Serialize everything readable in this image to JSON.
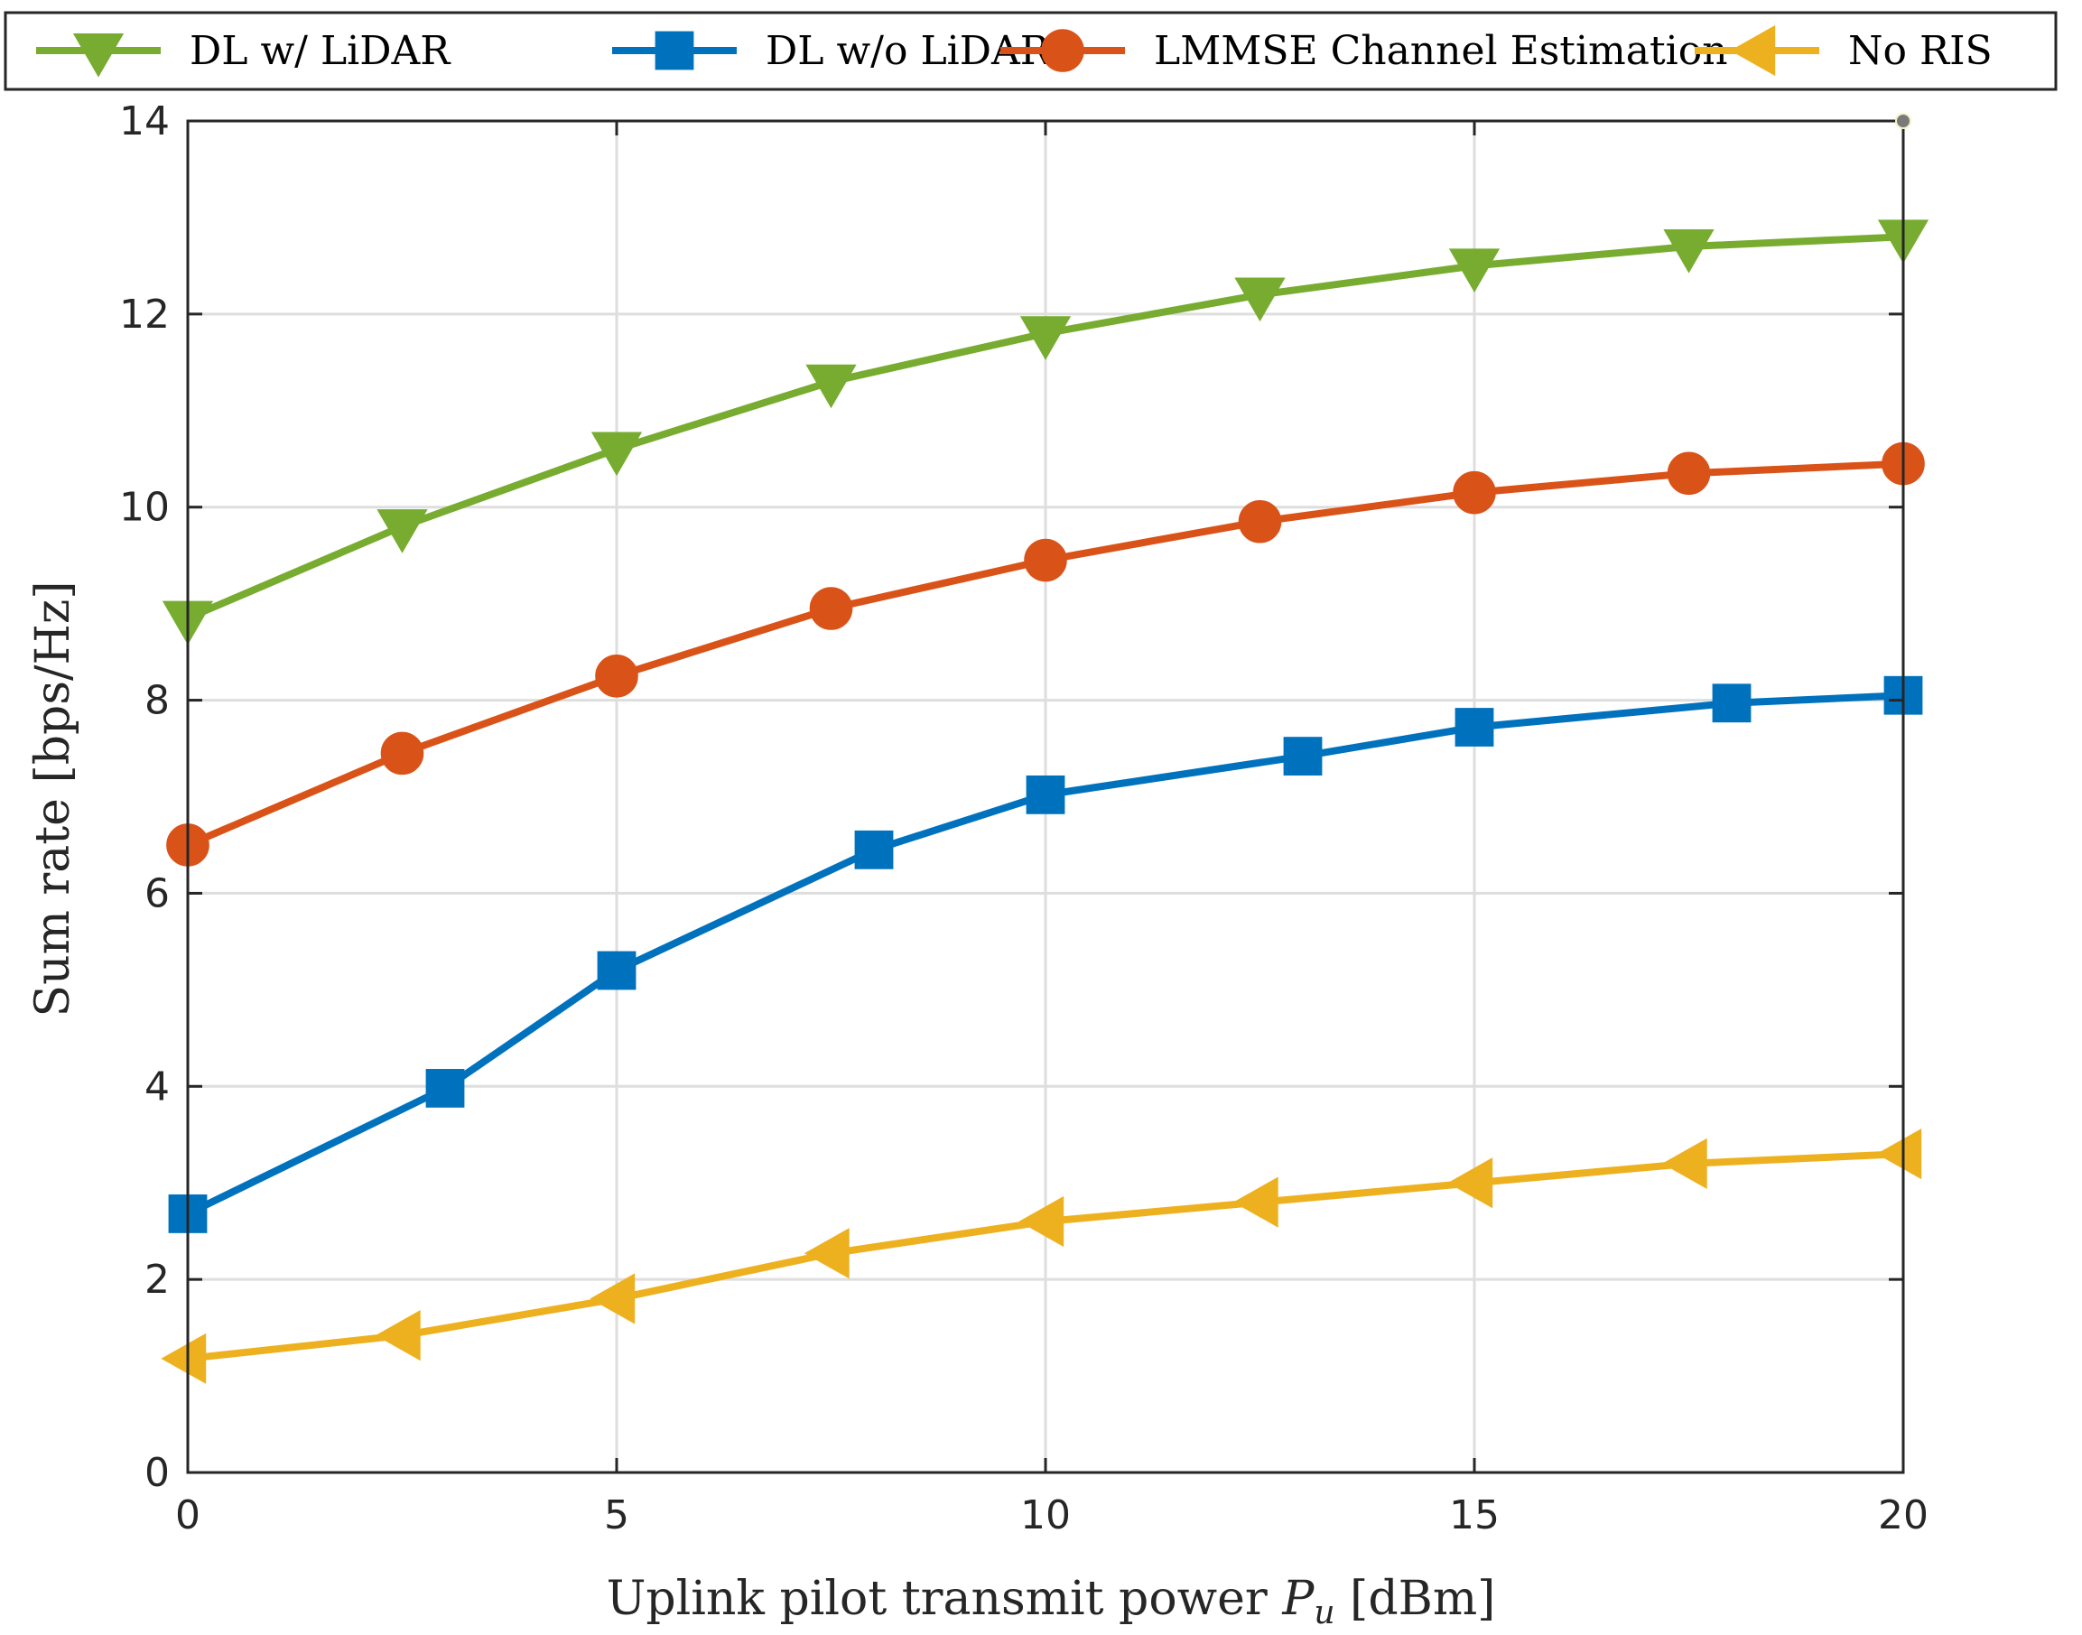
{
  "chart_data": {
    "type": "line",
    "xlabel_prefix": "Uplink pilot transmit power ",
    "xlabel_symbol": "P",
    "xlabel_subscript": "u",
    "xlabel_suffix": " [dBm]",
    "ylabel": "Sum rate [bps/Hz]",
    "xlim": [
      0,
      20
    ],
    "ylim": [
      0,
      14
    ],
    "xticks": [
      0,
      5,
      10,
      15,
      20
    ],
    "yticks": [
      0,
      2,
      4,
      6,
      8,
      10,
      12,
      14
    ],
    "grid": true,
    "legend_position": "top",
    "series": [
      {
        "name": "DL w/ LiDAR",
        "color": "#77ac30",
        "marker": "triangle-down",
        "x": [
          0,
          2.5,
          5,
          7.5,
          10,
          12.5,
          15,
          17.5,
          20
        ],
        "y": [
          8.85,
          9.8,
          10.6,
          11.3,
          11.8,
          12.2,
          12.5,
          12.7,
          12.8
        ]
      },
      {
        "name": "DL w/o LiDAR",
        "color": "#0072bd",
        "marker": "square",
        "x": [
          0,
          3,
          5,
          8,
          10,
          13,
          15,
          18,
          20
        ],
        "y": [
          2.68,
          3.98,
          5.2,
          6.45,
          7.02,
          7.42,
          7.72,
          7.97,
          8.05
        ]
      },
      {
        "name": "LMMSE Channel Estimation",
        "color": "#d95319",
        "marker": "circle",
        "x": [
          0,
          2.5,
          5,
          7.5,
          10,
          12.5,
          15,
          17.5,
          20
        ],
        "y": [
          6.5,
          7.45,
          8.25,
          8.95,
          9.45,
          9.85,
          10.15,
          10.35,
          10.45
        ]
      },
      {
        "name": "No RIS",
        "color": "#edb120",
        "marker": "triangle-left",
        "x": [
          0,
          2.5,
          5,
          7.5,
          10,
          12.5,
          15,
          17.5,
          20
        ],
        "y": [
          1.18,
          1.42,
          1.8,
          2.27,
          2.6,
          2.8,
          3.0,
          3.2,
          3.3
        ]
      }
    ]
  }
}
